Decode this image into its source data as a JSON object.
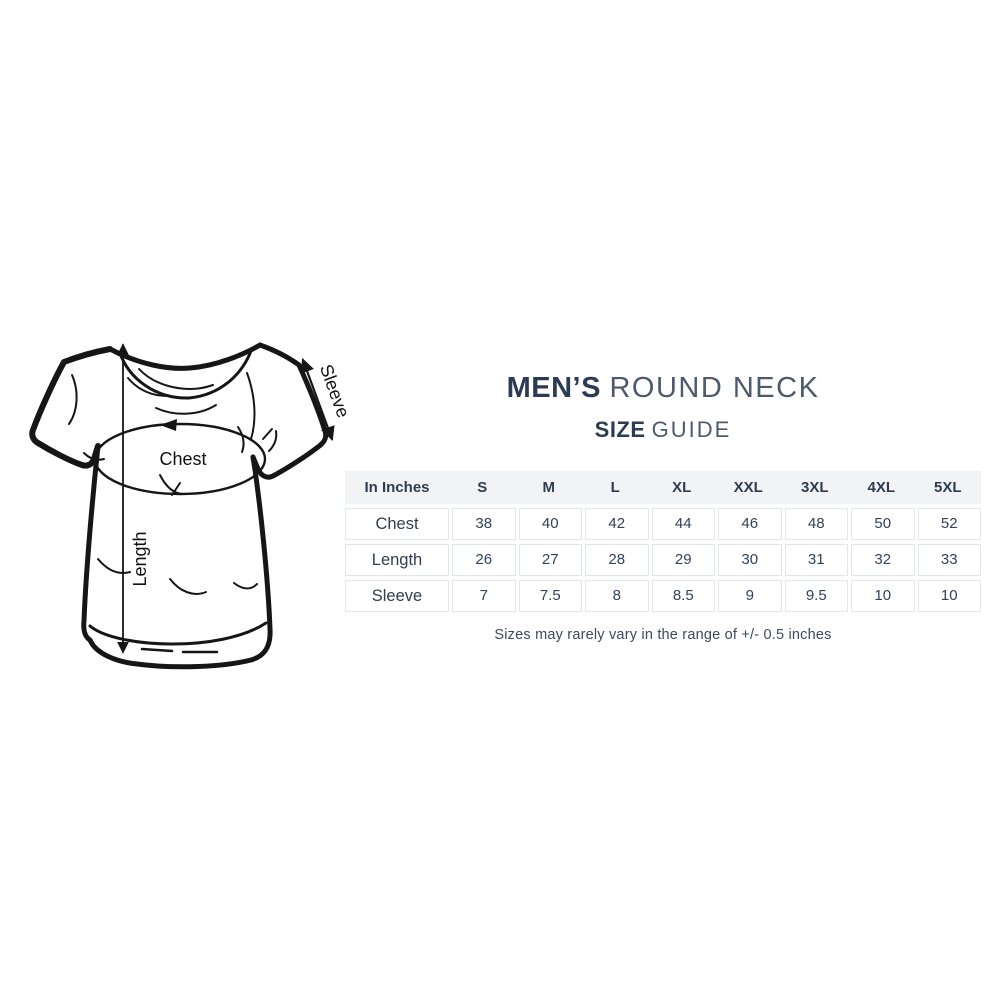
{
  "heading": {
    "line1_bold": "MEN’S",
    "line1_regular": "ROUND NECK",
    "line2_bold": "SIZE",
    "line2_regular": "GUIDE"
  },
  "diagram": {
    "chest_label": "Chest",
    "length_label": "Length",
    "sleeve_label": "Sleeve"
  },
  "size_table": {
    "columns": [
      "In Inches",
      "S",
      "M",
      "L",
      "XL",
      "XXL",
      "3XL",
      "4XL",
      "5XL"
    ],
    "rows": [
      {
        "label": "Chest",
        "values": [
          "38",
          "40",
          "42",
          "44",
          "46",
          "48",
          "50",
          "52"
        ]
      },
      {
        "label": "Length",
        "values": [
          "26",
          "27",
          "28",
          "29",
          "30",
          "31",
          "32",
          "33"
        ]
      },
      {
        "label": "Sleeve",
        "values": [
          "7",
          "7.5",
          "8",
          "8.5",
          "9",
          "9.5",
          "10",
          "10"
        ]
      }
    ]
  },
  "footnote": "Sizes may rarely vary in the range of +/- 0.5 inches",
  "colors": {
    "title_dark": "#2c3b55",
    "title_light": "#4d5a6e",
    "table_text": "#33415a",
    "table_header_bg": "#f1f3f5",
    "cell_border": "#e3e7ea",
    "drawing_ink": "#161616",
    "page_bg": "#ffffff"
  }
}
